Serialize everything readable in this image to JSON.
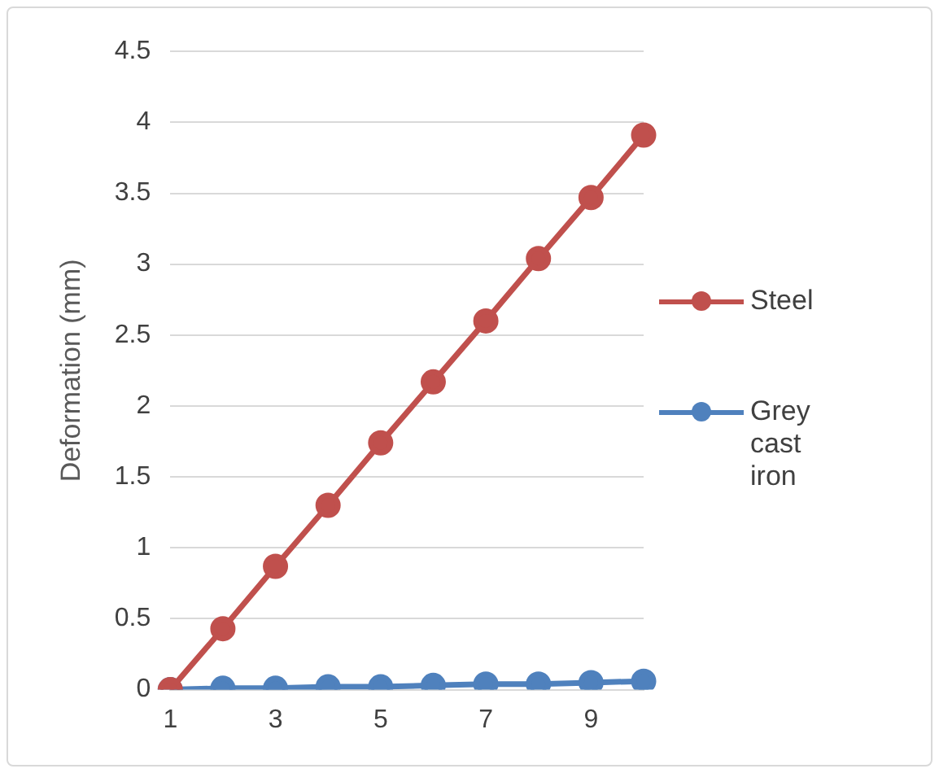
{
  "chart_data": {
    "type": "line",
    "ylabel": "Deformation (mm)",
    "categories": [
      "1",
      null,
      "3",
      null,
      "5",
      null,
      "7",
      null,
      "9",
      null
    ],
    "series": [
      {
        "name": "Steel",
        "color": "#c0504d",
        "values": [
          0,
          0.43,
          0.87,
          1.3,
          1.74,
          2.17,
          2.6,
          3.04,
          3.47,
          3.91
        ]
      },
      {
        "name": "Grey cast iron",
        "color": "#4f81bd",
        "values": [
          0,
          0.01,
          0.01,
          0.02,
          0.02,
          0.03,
          0.04,
          0.04,
          0.05,
          0.06
        ]
      }
    ],
    "ylim": [
      0,
      4.5
    ],
    "yticks": [
      0,
      0.5,
      1,
      1.5,
      2,
      2.5,
      3,
      3.5,
      4,
      4.5
    ],
    "grid": "y",
    "legend": "right",
    "marker": "circle",
    "line_style": "solid"
  }
}
